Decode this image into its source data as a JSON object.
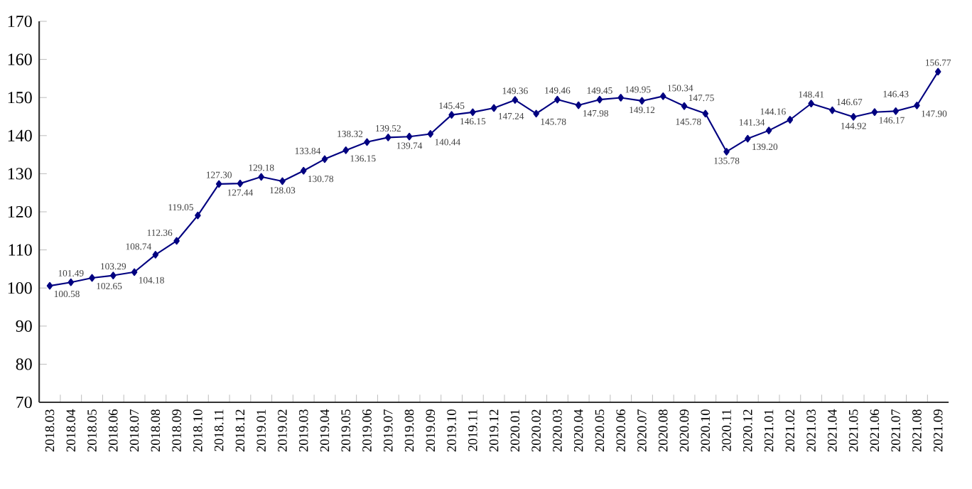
{
  "chart_data": {
    "type": "line",
    "categories": [
      "2018.03",
      "2018.04",
      "2018.05",
      "2018.06",
      "2018.07",
      "2018.08",
      "2018.09",
      "2018.10",
      "2018.11",
      "2018.12",
      "2019.01",
      "2019.02",
      "2019.03",
      "2019.04",
      "2019.05",
      "2019.06",
      "2019.07",
      "2019.08",
      "2019.09",
      "2019.10",
      "2019.11",
      "2019.12",
      "2020.01",
      "2020.02",
      "2020.03",
      "2020.04",
      "2020.05",
      "2020.06",
      "2020.07",
      "2020.08",
      "2020.09",
      "2020.10",
      "2020.11",
      "2020.12",
      "2021.01",
      "2021.02",
      "2021.03",
      "2021.04",
      "2021.05",
      "2021.06",
      "2021.07",
      "2021.08",
      "2021.09"
    ],
    "series": [
      {
        "color": "#000080",
        "values": [
          100.58,
          101.49,
          102.65,
          103.29,
          104.18,
          108.74,
          112.36,
          119.05,
          127.3,
          127.44,
          129.18,
          128.03,
          130.78,
          133.84,
          136.15,
          138.32,
          139.52,
          139.74,
          140.44,
          145.45,
          146.15,
          147.24,
          149.36,
          145.78,
          149.46,
          147.98,
          149.45,
          149.95,
          149.12,
          150.34,
          147.75,
          145.78,
          135.78,
          139.2,
          141.34,
          144.16,
          148.41,
          146.67,
          144.92,
          146.17,
          146.43,
          147.9,
          156.77
        ],
        "value_labels": [
          "100.58",
          "101.49",
          "102.65",
          "103.29",
          "104.18",
          "108.74",
          "112.36",
          "119.05",
          "127.30",
          "127.44",
          "129.18",
          "128.03",
          "130.78",
          "133.84",
          "136.15",
          "138.32",
          "139.52",
          "139.74",
          "140.44",
          "145.45",
          "146.15",
          "147.24",
          "149.36",
          "145.78",
          "149.46",
          "147.98",
          "149.45",
          "149.95",
          "149.12",
          "150.34",
          "147.75",
          "145.78",
          "135.78",
          "139.20",
          "141.34",
          "144.16",
          "148.41",
          "146.67",
          "144.92",
          "146.17",
          "146.43",
          "147.90",
          "156.77"
        ]
      }
    ],
    "ylim": [
      70,
      170
    ],
    "yticks": [
      70,
      80,
      90,
      100,
      110,
      120,
      130,
      140,
      150,
      160,
      170
    ],
    "marker": "diamond",
    "line_style": "solid",
    "grid": false
  }
}
